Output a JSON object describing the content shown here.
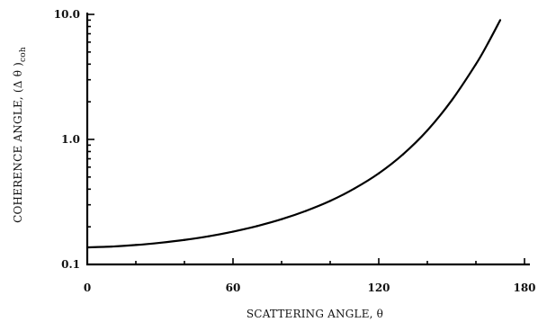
{
  "chart_data": {
    "type": "line",
    "title": "",
    "xlabel": "SCATTERING ANGLE, θ",
    "ylabel": "COHERENCE ANGLE, (Δ θ )coh",
    "ylabel_main": "COHERENCE ANGLE, (Δ θ )",
    "ylabel_sub": "coh",
    "xlim": [
      0,
      180
    ],
    "ylim": [
      0.1,
      10.0
    ],
    "yscale": "log",
    "grid": false,
    "legend": "none",
    "x_major_ticks": [
      0,
      60,
      120,
      180
    ],
    "x_tick_labels": [
      "0",
      "60",
      "120",
      "180"
    ],
    "x_minor_ticks": [
      20,
      40,
      80,
      100,
      140,
      160
    ],
    "y_major_ticks": [
      0.1,
      1.0,
      10.0
    ],
    "y_tick_labels": [
      "0.1",
      "1.0",
      "10.0"
    ],
    "series": [
      {
        "x": [
          0,
          10,
          20,
          30,
          40,
          50,
          60,
          70,
          80,
          90,
          100,
          110,
          120,
          130,
          140,
          150,
          160,
          165,
          170
        ],
        "y": [
          0.137,
          0.139,
          0.143,
          0.149,
          0.157,
          0.168,
          0.183,
          0.203,
          0.23,
          0.268,
          0.322,
          0.405,
          0.535,
          0.76,
          1.18,
          2.05,
          4.0,
          5.9,
          9.0
        ]
      }
    ]
  }
}
